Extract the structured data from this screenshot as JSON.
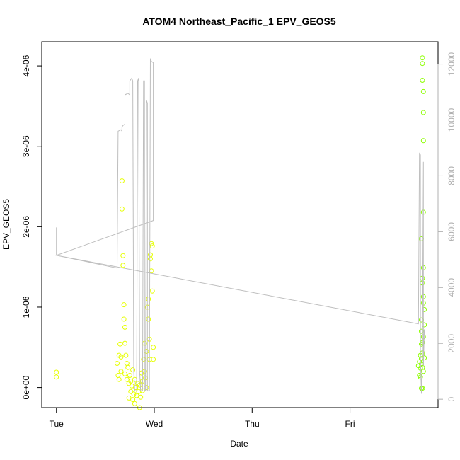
{
  "chart_data": {
    "type": "scatter",
    "title": "ATOM4 Northeast_Pacific_1 EPV_GEOS5",
    "xlabel": "Date",
    "ylabel": "EPV_GEOS5",
    "x_tick_labels": [
      "Tue",
      "Wed",
      "Thu",
      "Fri"
    ],
    "x_tick_days": [
      0,
      1,
      2,
      3
    ],
    "xlim": [
      -0.15,
      3.9
    ],
    "y_ticks": [
      0,
      1e-06,
      2e-06,
      3e-06,
      4e-06
    ],
    "y_tick_labels": [
      "0e+00",
      "1e-06",
      "2e-06",
      "3e-06",
      "4e-06"
    ],
    "ylim": [
      -2.5e-07,
      4.3e-06
    ],
    "y2_ticks": [
      0,
      2000,
      4000,
      6000,
      8000,
      10000,
      12000
    ],
    "y2_tick_labels": [
      "0",
      "2000",
      "4000",
      "6000",
      "8000",
      "10000",
      "12000"
    ],
    "y2lim": [
      -300,
      12800
    ],
    "grid": false,
    "colors": {
      "point_yellow": "#e6ff00",
      "point_green": "#8cff00",
      "line": "#bebebe",
      "axis": "#000000",
      "right_axis": "#b0b0b0"
    },
    "series": [
      {
        "axis": "left",
        "color": "#e6ff00",
        "points": [
          [
            0.0,
            1.9e-07
          ],
          [
            0.0,
            1.3e-07
          ],
          [
            0.62,
            3e-07
          ],
          [
            0.63,
            1.5e-07
          ],
          [
            0.64,
            4e-07
          ],
          [
            0.65,
            5.4e-07
          ],
          [
            0.66,
            2e-07
          ],
          [
            0.67,
            2.57e-06
          ],
          [
            0.67,
            2.22e-06
          ],
          [
            0.68,
            1.64e-06
          ],
          [
            0.68,
            1.52e-06
          ],
          [
            0.69,
            1.03e-06
          ],
          [
            0.69,
            8.5e-07
          ],
          [
            0.7,
            7.5e-07
          ],
          [
            0.7,
            5.5e-07
          ],
          [
            0.71,
            4e-07
          ],
          [
            0.72,
            3e-07
          ],
          [
            0.72,
            1e-07
          ],
          [
            0.73,
            2.5e-07
          ],
          [
            0.74,
            5e-08
          ],
          [
            0.75,
            1.5e-07
          ],
          [
            0.76,
            -5e-08
          ],
          [
            0.77,
            2e-08
          ],
          [
            0.78,
            -1.5e-07
          ],
          [
            0.79,
            -8e-08
          ],
          [
            0.8,
            1e-07
          ],
          [
            0.81,
            0.0
          ],
          [
            0.82,
            -1e-07
          ],
          [
            0.83,
            5e-08
          ],
          [
            0.84,
            -5e-08
          ],
          [
            0.85,
            3e-08
          ],
          [
            0.86,
            -1.2e-07
          ],
          [
            0.87,
            1.8e-07
          ],
          [
            0.88,
            8e-08
          ],
          [
            0.89,
            3.5e-07
          ],
          [
            0.9,
            5.5e-07
          ],
          [
            0.9,
            2e-07
          ],
          [
            0.91,
            1.2e-07
          ],
          [
            0.92,
            4.5e-07
          ],
          [
            0.93,
            1e-06
          ],
          [
            0.94,
            8.5e-07
          ],
          [
            0.95,
            6e-07
          ],
          [
            0.95,
            3.5e-07
          ],
          [
            0.96,
            1.65e-06
          ],
          [
            0.96,
            1.6e-06
          ],
          [
            0.97,
            1.79e-06
          ],
          [
            0.97,
            1.45e-06
          ],
          [
            0.98,
            1.76e-06
          ],
          [
            0.98,
            1.2e-06
          ],
          [
            0.99,
            5e-07
          ],
          [
            0.99,
            3.5e-07
          ],
          [
            0.94,
            1.1e-06
          ],
          [
            0.92,
            0.0
          ],
          [
            0.85,
            -2.5e-07
          ],
          [
            0.8,
            -2e-07
          ],
          [
            0.74,
            -1.3e-07
          ],
          [
            0.7,
            1.7e-07
          ],
          [
            0.66,
            3.8e-07
          ],
          [
            0.64,
            1e-07
          ],
          [
            0.78,
            2.2e-07
          ],
          [
            0.88,
            -4e-08
          ],
          [
            0.76,
            8e-08
          ]
        ]
      },
      {
        "axis": "left",
        "color": "#8cff00",
        "points": [
          [
            3.7,
            2.7e-07
          ],
          [
            3.71,
            1.5e-07
          ],
          [
            3.71,
            3.2e-07
          ],
          [
            3.72,
            1.3e-07
          ],
          [
            3.72,
            2.4e-07
          ],
          [
            3.73,
            3.6e-07
          ],
          [
            3.73,
            1.85e-06
          ],
          [
            3.74,
            4.1e-06
          ],
          [
            3.74,
            4.03e-06
          ],
          [
            3.74,
            3.82e-06
          ],
          [
            3.75,
            3.68e-06
          ],
          [
            3.75,
            3.42e-06
          ],
          [
            3.75,
            3.07e-06
          ],
          [
            3.75,
            2.18e-06
          ],
          [
            3.75,
            1.49e-06
          ],
          [
            3.74,
            1.36e-06
          ],
          [
            3.74,
            1.3e-06
          ],
          [
            3.75,
            1.13e-06
          ],
          [
            3.75,
            1.05e-06
          ],
          [
            3.76,
            9.7e-07
          ],
          [
            3.76,
            7.8e-07
          ],
          [
            3.75,
            6.3e-07
          ],
          [
            3.74,
            5.6e-07
          ],
          [
            3.73,
            8.4e-07
          ],
          [
            3.73,
            7e-07
          ],
          [
            3.73,
            5.4e-07
          ],
          [
            3.74,
            4.3e-07
          ],
          [
            3.74,
            2.5e-07
          ],
          [
            3.73,
            -1e-08
          ],
          [
            3.74,
            -1e-08
          ],
          [
            3.72,
            4e-07
          ],
          [
            3.73,
            2.9e-07
          ],
          [
            3.75,
            2e-07
          ],
          [
            3.76,
            3.7e-07
          ]
        ]
      },
      {
        "axis": "right",
        "color": "#bebebe",
        "type": "line",
        "points": [
          [
            0.0,
            6150
          ],
          [
            0.0,
            5150
          ],
          [
            0.62,
            4700
          ],
          [
            0.62,
            4800
          ],
          [
            0.63,
            9600
          ],
          [
            0.66,
            9650
          ],
          [
            0.67,
            9600
          ],
          [
            0.67,
            9750
          ],
          [
            0.68,
            9800
          ],
          [
            0.7,
            9850
          ],
          [
            0.7,
            10900
          ],
          [
            0.73,
            10950
          ],
          [
            0.75,
            10900
          ],
          [
            0.75,
            11400
          ],
          [
            0.77,
            11500
          ],
          [
            0.78,
            11400
          ],
          [
            0.79,
            1000
          ],
          [
            0.8,
            300
          ],
          [
            0.82,
            300
          ],
          [
            0.83,
            11400
          ],
          [
            0.84,
            11500
          ],
          [
            0.85,
            1000
          ],
          [
            0.86,
            300
          ],
          [
            0.88,
            300
          ],
          [
            0.89,
            11400
          ],
          [
            0.9,
            11400
          ],
          [
            0.9,
            300
          ],
          [
            0.91,
            300
          ],
          [
            0.92,
            10700
          ],
          [
            0.93,
            10600
          ],
          [
            0.93,
            300
          ],
          [
            0.95,
            300
          ],
          [
            0.96,
            12200
          ],
          [
            0.97,
            12100
          ],
          [
            0.99,
            12050
          ],
          [
            0.99,
            6400
          ],
          [
            0.95,
            6350
          ],
          [
            0.0,
            5150
          ],
          [
            3.7,
            2700
          ],
          [
            3.71,
            8800
          ],
          [
            3.72,
            8750
          ],
          [
            3.72,
            1500
          ],
          [
            3.73,
            200
          ],
          [
            3.74,
            1600
          ],
          [
            3.75,
            8500
          ],
          [
            3.75,
            1200
          ],
          [
            3.76,
            2500
          ]
        ]
      }
    ]
  }
}
